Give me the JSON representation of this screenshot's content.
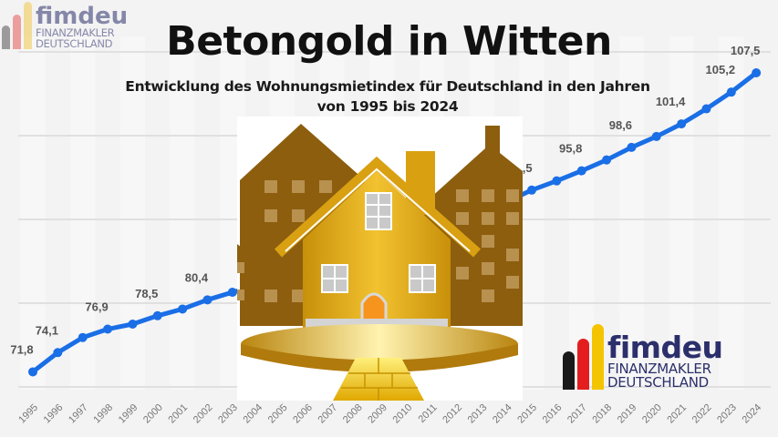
{
  "header": {
    "title": "Betongold in Witten",
    "subtitle_line1": "Entwicklung des Wohnungsmietindex für Deutschland in den Jahren",
    "subtitle_line2": "von 1995 bis 2024"
  },
  "logo": {
    "brand": "fimdeu",
    "line1": "FINANZMAKLER",
    "line2": "DEUTSCHLAND",
    "bar_colors": [
      "#1a1a1a",
      "#e41e1e",
      "#f5c400"
    ],
    "text_color": "#2b2f6b"
  },
  "illustration": {
    "description": "golden house on platform with gold bars, brown apartment buildings in background",
    "colors": {
      "house": "#e0ac12",
      "buildings": "#8c5e0e",
      "door": "#f7941d",
      "windows": "#c9c9c9"
    }
  },
  "colors": {
    "line": "#1a6ee6",
    "label": "#555555",
    "grid": "#e0e0e0",
    "background": "#f3f3f3"
  },
  "chart_data": {
    "type": "line",
    "title": "Betongold in Witten",
    "subtitle": "Entwicklung des Wohnungsmietindex für Deutschland in den Jahren von 1995 bis 2024",
    "xlabel": "",
    "ylabel": "",
    "categories": [
      "1995",
      "1996",
      "1997",
      "1998",
      "1999",
      "2000",
      "2001",
      "2002",
      "2003",
      "2004",
      "2005",
      "2006",
      "2007",
      "2008",
      "2009",
      "2010",
      "2011",
      "2012",
      "2013",
      "2014",
      "2015",
      "2016",
      "2017",
      "2018",
      "2019",
      "2020",
      "2021",
      "2022",
      "2023",
      "2024"
    ],
    "series": [
      {
        "name": "Wohnungsmietindex",
        "values": [
          71.8,
          74.1,
          75.9,
          76.9,
          77.5,
          78.5,
          79.3,
          80.4,
          81.3,
          82.1,
          82.9,
          83.7,
          84.6,
          85.6,
          86.6,
          87.3,
          88.4,
          89.6,
          90.8,
          92.1,
          93.5,
          94.6,
          95.8,
          97.1,
          98.6,
          99.9,
          101.4,
          103.2,
          105.2,
          107.5
        ]
      }
    ],
    "data_labels": [
      {
        "year": "1995",
        "text": "71,8"
      },
      {
        "year": "1996",
        "text": "74,1"
      },
      {
        "year": "1998",
        "text": "76,9"
      },
      {
        "year": "2000",
        "text": "78,5"
      },
      {
        "year": "2002",
        "text": "80,4"
      },
      {
        "year": "2015",
        "text": "93,5"
      },
      {
        "year": "2017",
        "text": "95,8"
      },
      {
        "year": "2019",
        "text": "98,6"
      },
      {
        "year": "2021",
        "text": "101,4"
      },
      {
        "year": "2023",
        "text": "105,2"
      },
      {
        "year": "2024",
        "text": "107,5"
      }
    ],
    "ylim": [
      70,
      110
    ],
    "grid": true,
    "gridlines": [
      70,
      80,
      90,
      100,
      110
    ],
    "legend": "none",
    "xtick_rotation": -45
  }
}
